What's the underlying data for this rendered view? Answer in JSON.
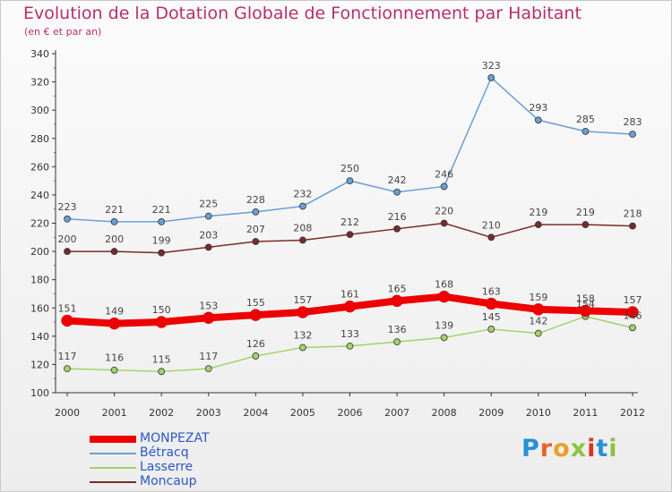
{
  "title": "Evolution de la Dotation Globale de Fonctionnement par Habitant",
  "subtitle": "(en € et par an)",
  "logo": {
    "text": "Proxiti",
    "letters": [
      "P",
      "r",
      "o",
      "x",
      "i",
      "t",
      "i"
    ],
    "colors": [
      "#2a8fd8",
      "#e8652a",
      "#e8a02a",
      "#8ac43f",
      "#d8342a",
      "#2a8fd8",
      "#8ac43f"
    ]
  },
  "chart_data": {
    "type": "line",
    "x": [
      "2000",
      "2001",
      "2002",
      "2003",
      "2004",
      "2005",
      "2006",
      "2007",
      "2008",
      "2009",
      "2010",
      "2011",
      "2012"
    ],
    "ylim": [
      100,
      340
    ],
    "yticks": [
      100,
      120,
      140,
      160,
      180,
      200,
      220,
      240,
      260,
      280,
      300,
      320,
      340
    ],
    "grid": false,
    "legend_position": "bottom-left",
    "series": [
      {
        "name": "MONPEZAT",
        "color": "#ee0000",
        "emphasis": true,
        "values": [
          151,
          149,
          150,
          153,
          155,
          157,
          161,
          165,
          168,
          163,
          159,
          158,
          157
        ]
      },
      {
        "name": "Bétracq",
        "color": "#6a9fd4",
        "values": [
          223,
          221,
          221,
          225,
          228,
          232,
          250,
          242,
          246,
          323,
          293,
          285,
          283
        ]
      },
      {
        "name": "Lasserre",
        "color": "#9fd46a",
        "values": [
          117,
          116,
          115,
          117,
          126,
          132,
          133,
          136,
          139,
          145,
          142,
          154,
          146
        ]
      },
      {
        "name": "Moncaup",
        "color": "#7a2a2a",
        "values": [
          200,
          200,
          199,
          203,
          207,
          208,
          212,
          216,
          220,
          210,
          219,
          219,
          218
        ]
      }
    ]
  }
}
